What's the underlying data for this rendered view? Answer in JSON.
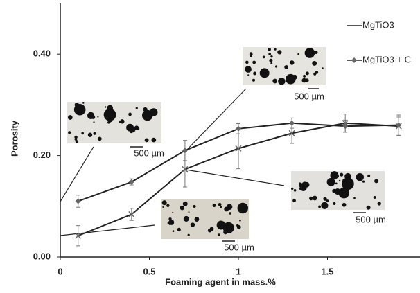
{
  "chart_data": {
    "type": "line",
    "x_label": "Foaming agent in mass.%",
    "y_label": "Porosity",
    "x": [
      0.1,
      0.4,
      0.7,
      1.0,
      1.3,
      1.6,
      1.9
    ],
    "series": [
      {
        "name": "MgTiO3",
        "color": "#222222",
        "marker": "x",
        "values": [
          0.042,
          0.084,
          0.173,
          0.214,
          0.244,
          0.264,
          0.258
        ],
        "errors": [
          0.02,
          0.012,
          0.035,
          0.04,
          0.02,
          0.018,
          0.018
        ]
      },
      {
        "name": "MgTiO3 + C",
        "color": "#222222",
        "marker": "diamond",
        "values": [
          0.11,
          0.148,
          0.21,
          0.253,
          0.264,
          0.258,
          0.26
        ],
        "errors": [
          0.012,
          0.006,
          0.02,
          0.01,
          0.01,
          0.012,
          0.02
        ]
      }
    ],
    "xlim": [
      0,
      2
    ],
    "xticks": [
      0,
      0.5,
      1,
      1.5
    ],
    "ylim": [
      0,
      0.5
    ],
    "yticks": [
      {
        "value": 0,
        "label": "0.00"
      },
      {
        "value": 0.2,
        "label": "0.20"
      },
      {
        "value": 0.4,
        "label": "0.40"
      }
    ],
    "annotations": [
      "500 µm",
      "500 µm",
      "500 µm",
      "500 µm"
    ]
  }
}
